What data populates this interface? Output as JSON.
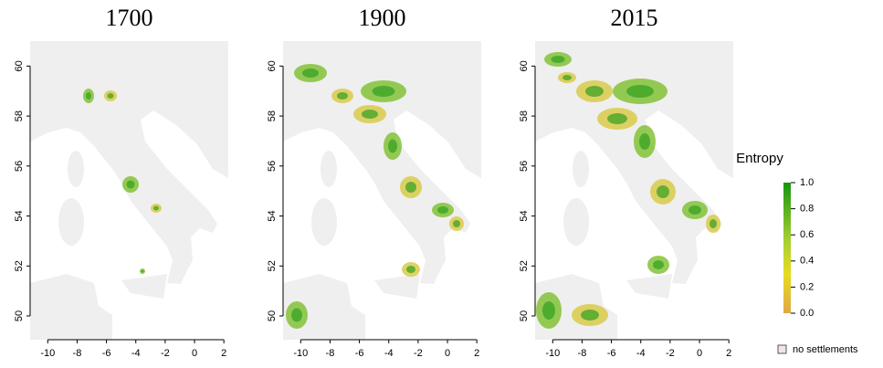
{
  "panels": [
    {
      "title": "1700",
      "xlim": [
        -11.2,
        2.3
      ],
      "ylim": [
        49.05,
        61
      ],
      "xticks": [
        -10,
        -8,
        -6,
        -4,
        -2,
        0,
        2
      ],
      "yticks": [
        50,
        52,
        54,
        56,
        58,
        60
      ]
    },
    {
      "title": "1900",
      "xlim": [
        -11.2,
        2.3
      ],
      "ylim": [
        49.05,
        61
      ],
      "xticks": [
        -10,
        -8,
        -6,
        -4,
        -2,
        0,
        2
      ],
      "yticks": [
        50,
        52,
        54,
        56,
        58,
        60
      ]
    },
    {
      "title": "2015",
      "xlim": [
        -11.2,
        2.3
      ],
      "ylim": [
        49.05,
        61
      ],
      "xticks": [
        -10,
        -8,
        -6,
        -4,
        -2,
        0,
        2
      ],
      "yticks": [
        50,
        52,
        54,
        56,
        58,
        60
      ]
    }
  ],
  "legend": {
    "title": "Entropy",
    "lim": [
      0,
      1
    ],
    "ticks": [
      {
        "value": 0,
        "label": "0.0"
      },
      {
        "value": 0.2,
        "label": "0.2"
      },
      {
        "value": 0.4,
        "label": "0.4"
      },
      {
        "value": 0.6,
        "label": "0.6"
      },
      {
        "value": 0.8,
        "label": "0.8"
      },
      {
        "value": 1,
        "label": "1.0"
      }
    ],
    "no_data_label": "no settlements"
  }
}
